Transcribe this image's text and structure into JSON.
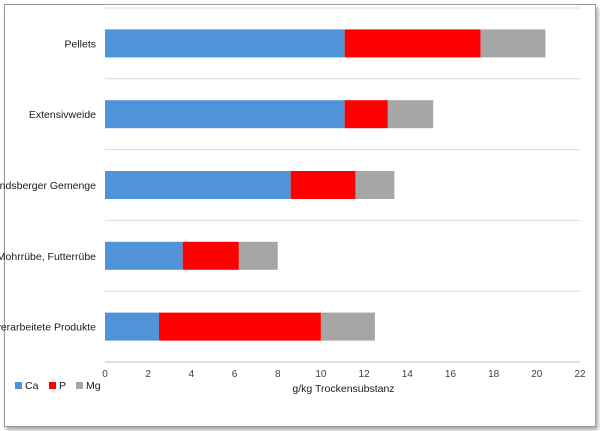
{
  "chart_data": {
    "type": "bar",
    "orientation": "horizontal",
    "stacked": true,
    "categories": [
      "Pellets",
      "Extensivweide",
      "Landsberger Gemenge",
      "Mohrrübe, Futterrübe",
      "verarbeitete Produkte"
    ],
    "series": [
      {
        "name": "Ca",
        "color": "#4f94d8",
        "values": [
          11.1,
          11.1,
          8.6,
          3.6,
          2.5
        ]
      },
      {
        "name": "P",
        "color": "#ff0000",
        "values": [
          6.3,
          2.0,
          3.0,
          2.6,
          7.5
        ]
      },
      {
        "name": "Mg",
        "color": "#a6a6a6",
        "values": [
          3.0,
          2.1,
          1.8,
          1.8,
          2.5
        ]
      }
    ],
    "xlabel": "g/kg Trockensubstanz",
    "ylabel": "",
    "xlim": [
      0,
      22
    ],
    "xticks": [
      0,
      2,
      4,
      6,
      8,
      10,
      12,
      14,
      16,
      18,
      20,
      22
    ],
    "grid": "horizontal category separators",
    "legend": "bottom-left"
  }
}
